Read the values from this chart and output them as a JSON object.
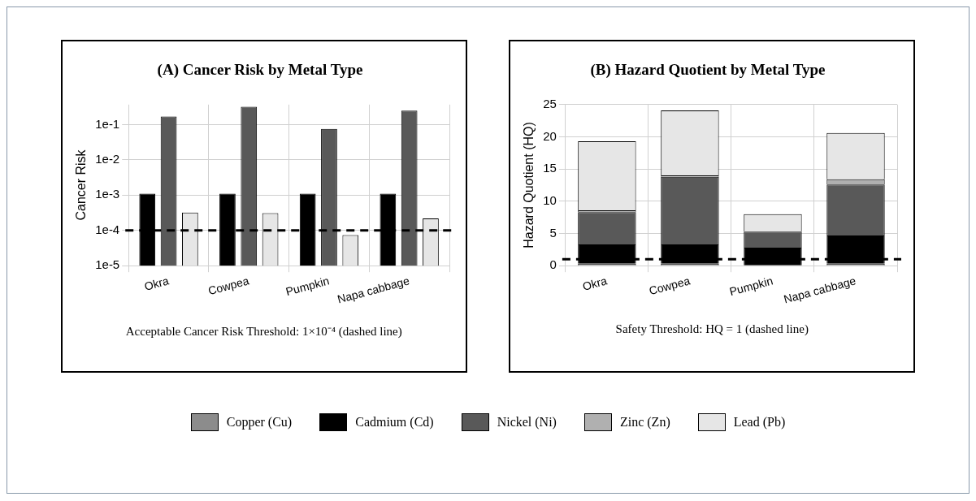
{
  "chart_data": [
    {
      "type": "bar",
      "title": "(A) Cancer Risk by Metal Type",
      "ylabel": "Cancer Risk",
      "log": "y",
      "categories": [
        "Okra",
        "Cowpea",
        "Pumpkin",
        "Napa cabbage"
      ],
      "series": [
        {
          "color": "#000000",
          "values": [
            0.0011,
            0.0011,
            0.0011,
            0.0011
          ]
        },
        {
          "color": "#595959",
          "values": [
            0.17,
            0.32,
            0.076,
            0.25
          ]
        },
        {
          "color": "#e6e6e6",
          "values": [
            0.00032,
            0.00031,
            7.4e-05,
            0.00022
          ]
        }
      ],
      "ylim": [
        1e-05,
        0.37
      ],
      "yticks": [
        {
          "value": 1e-05,
          "label": "1e-5"
        },
        {
          "value": 0.0001,
          "label": "1e-4"
        },
        {
          "value": 0.001,
          "label": "1e-3"
        },
        {
          "value": 0.01,
          "label": "1e-2"
        },
        {
          "value": 0.1,
          "label": "1e-1"
        }
      ],
      "grid": true,
      "legend": "bottom",
      "ref_lines": [
        {
          "axis": "y",
          "value": 0.0001,
          "color": "#000000",
          "line_style": "dashed"
        }
      ],
      "annotations": [
        "Acceptable Cancer Risk Threshold: 1×10⁻⁴ (dashed line)"
      ]
    },
    {
      "type": "bar",
      "title": "(B) Hazard Quotient by Metal Type",
      "ylabel": "Hazard Quotient (HQ)",
      "stacked": true,
      "categories": [
        "Okra",
        "Cowpea",
        "Pumpkin",
        "Napa cabbage"
      ],
      "series": [
        {
          "name": "Copper (Cu)",
          "color": "#8c8c8c",
          "values": [
            0.3,
            0.3,
            0,
            0.3
          ]
        },
        {
          "name": "Cadmium (Cd)",
          "color": "#000000",
          "values": [
            3.0,
            3.0,
            2.8,
            4.4
          ]
        },
        {
          "name": "Nickel (Ni)",
          "color": "#595959",
          "values": [
            5.0,
            10.5,
            2.5,
            7.9
          ]
        },
        {
          "name": "Zinc (Zn)",
          "color": "#b0b0b0",
          "values": [
            0.3,
            0.2,
            0,
            0.8
          ]
        },
        {
          "name": "Lead (Pb)",
          "color": "#e6e6e6",
          "values": [
            10.7,
            10.1,
            2.7,
            7.2
          ]
        }
      ],
      "ylim": [
        0,
        25
      ],
      "yticks": [
        0,
        5,
        10,
        15,
        20,
        25
      ],
      "grid": true,
      "legend": "bottom",
      "ref_lines": [
        {
          "axis": "y",
          "value": 1,
          "color": "#000000",
          "line_style": "dashed"
        }
      ],
      "annotations": [
        "Safety Threshold: HQ = 1 (dashed line)"
      ]
    }
  ]
}
